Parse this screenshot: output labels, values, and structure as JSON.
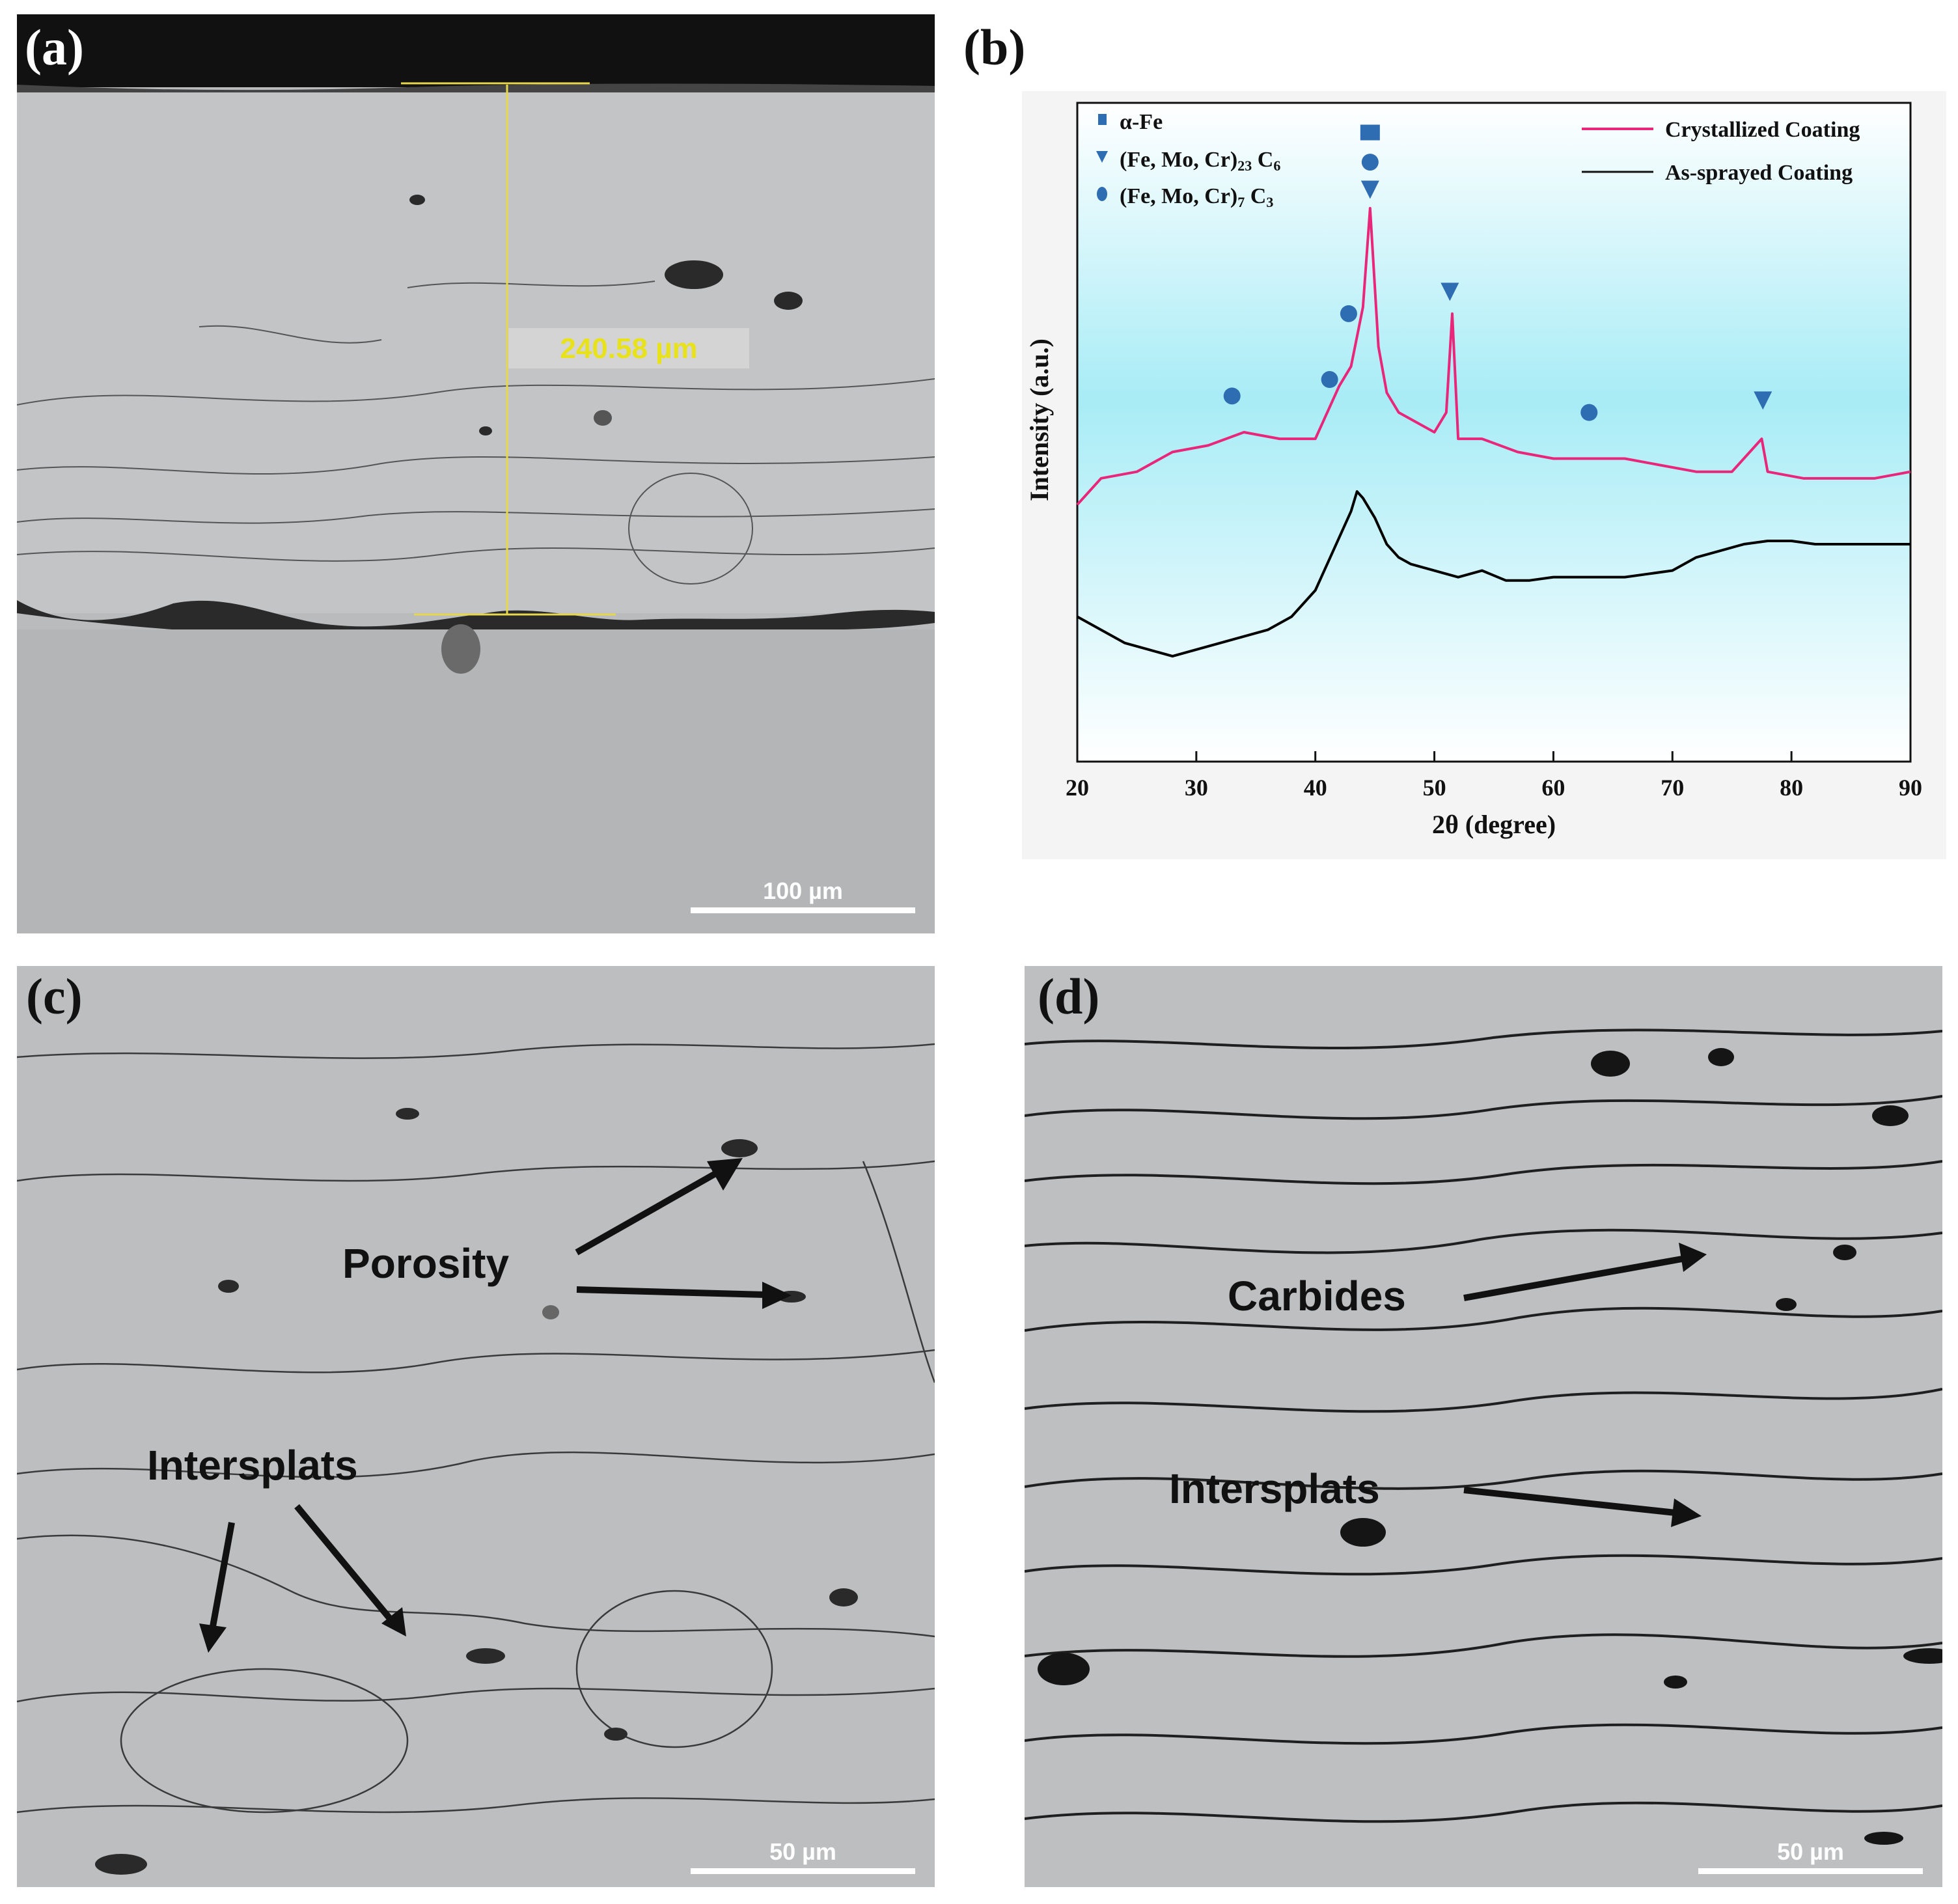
{
  "panels": {
    "a": {
      "letter": "(a)",
      "measurement": "240.58 µm",
      "scale_bar": "100 µm"
    },
    "b": {
      "letter": "(b)"
    },
    "c": {
      "letter": "(c)",
      "labels": {
        "porosity": "Porosity",
        "intersplats": "Intersplats"
      },
      "scale_bar": "50 µm"
    },
    "d": {
      "letter": "(d)",
      "labels": {
        "carbides": "Carbides",
        "intersplats": "Intersplats"
      },
      "scale_bar": "50 µm"
    }
  },
  "chart_data": {
    "type": "line",
    "xlabel": "2θ (degree)",
    "ylabel": "Intensity (a.u.)",
    "xlim": [
      20,
      90
    ],
    "x_ticks": [
      "20",
      "30",
      "40",
      "50",
      "60",
      "70",
      "80",
      "90"
    ],
    "y_ticks_shown": false,
    "legend_placement": "top-right",
    "phase_legend_placement": "top-left",
    "phase_legend": [
      {
        "marker": "square",
        "label": "α-Fe"
      },
      {
        "marker": "triangle-down",
        "label_main": "(Fe, Mo, Cr)",
        "sub1": "23",
        "label_mid": " C",
        "sub2": "6"
      },
      {
        "marker": "circle",
        "label_main": "(Fe, Mo, Cr)",
        "sub1": "7",
        "label_mid": " C",
        "sub2": "3"
      }
    ],
    "series": [
      {
        "name": "Crystallized Coating",
        "color": "#e8267a",
        "x": [
          20,
          22,
          25,
          28,
          31,
          34,
          37,
          40,
          41,
          42,
          43,
          44,
          44.6,
          45.3,
          46,
          47,
          48,
          50,
          51,
          51.5,
          52,
          54,
          57,
          60,
          63,
          66,
          69,
          72,
          75,
          77.5,
          78,
          81,
          84,
          87,
          90
        ],
        "y": [
          3.9,
          4.3,
          4.4,
          4.7,
          4.8,
          5.0,
          4.9,
          4.9,
          5.3,
          5.7,
          6.0,
          6.9,
          8.4,
          6.3,
          5.6,
          5.3,
          5.2,
          5.0,
          5.3,
          6.8,
          4.9,
          4.9,
          4.7,
          4.6,
          4.6,
          4.6,
          4.5,
          4.4,
          4.4,
          4.9,
          4.4,
          4.3,
          4.3,
          4.3,
          4.4
        ]
      },
      {
        "name": "As-sprayed Coating",
        "color": "#000000",
        "x": [
          20,
          22,
          24,
          26,
          28,
          30,
          32,
          34,
          36,
          38,
          40,
          41,
          42,
          43,
          43.5,
          44,
          45,
          46,
          47,
          48,
          50,
          52,
          54,
          56,
          58,
          60,
          62,
          64,
          66,
          68,
          70,
          72,
          74,
          76,
          78,
          80,
          82,
          84,
          86,
          88,
          90
        ],
        "y": [
          2.2,
          2.0,
          1.8,
          1.7,
          1.6,
          1.7,
          1.8,
          1.9,
          2.0,
          2.2,
          2.6,
          3.0,
          3.4,
          3.8,
          4.1,
          4.0,
          3.7,
          3.3,
          3.1,
          3.0,
          2.9,
          2.8,
          2.9,
          2.75,
          2.75,
          2.8,
          2.8,
          2.8,
          2.8,
          2.85,
          2.9,
          3.1,
          3.2,
          3.3,
          3.35,
          3.35,
          3.3,
          3.3,
          3.3,
          3.3,
          3.3
        ]
      }
    ],
    "ylim": [
      0,
      10
    ],
    "peak_markers": [
      {
        "x": 33,
        "y": 5.55,
        "marker": "circle"
      },
      {
        "x": 41.2,
        "y": 5.8,
        "marker": "circle"
      },
      {
        "x": 42.8,
        "y": 6.8,
        "marker": "circle"
      },
      {
        "x": 44.6,
        "y": 9.55,
        "marker": "square"
      },
      {
        "x": 44.6,
        "y": 9.1,
        "marker": "circle"
      },
      {
        "x": 44.6,
        "y": 8.7,
        "marker": "triangle-down"
      },
      {
        "x": 51.3,
        "y": 7.15,
        "marker": "triangle-down"
      },
      {
        "x": 63,
        "y": 5.3,
        "marker": "circle"
      },
      {
        "x": 77.6,
        "y": 5.5,
        "marker": "triangle-down"
      }
    ],
    "marker_color": "#2f6db3"
  }
}
